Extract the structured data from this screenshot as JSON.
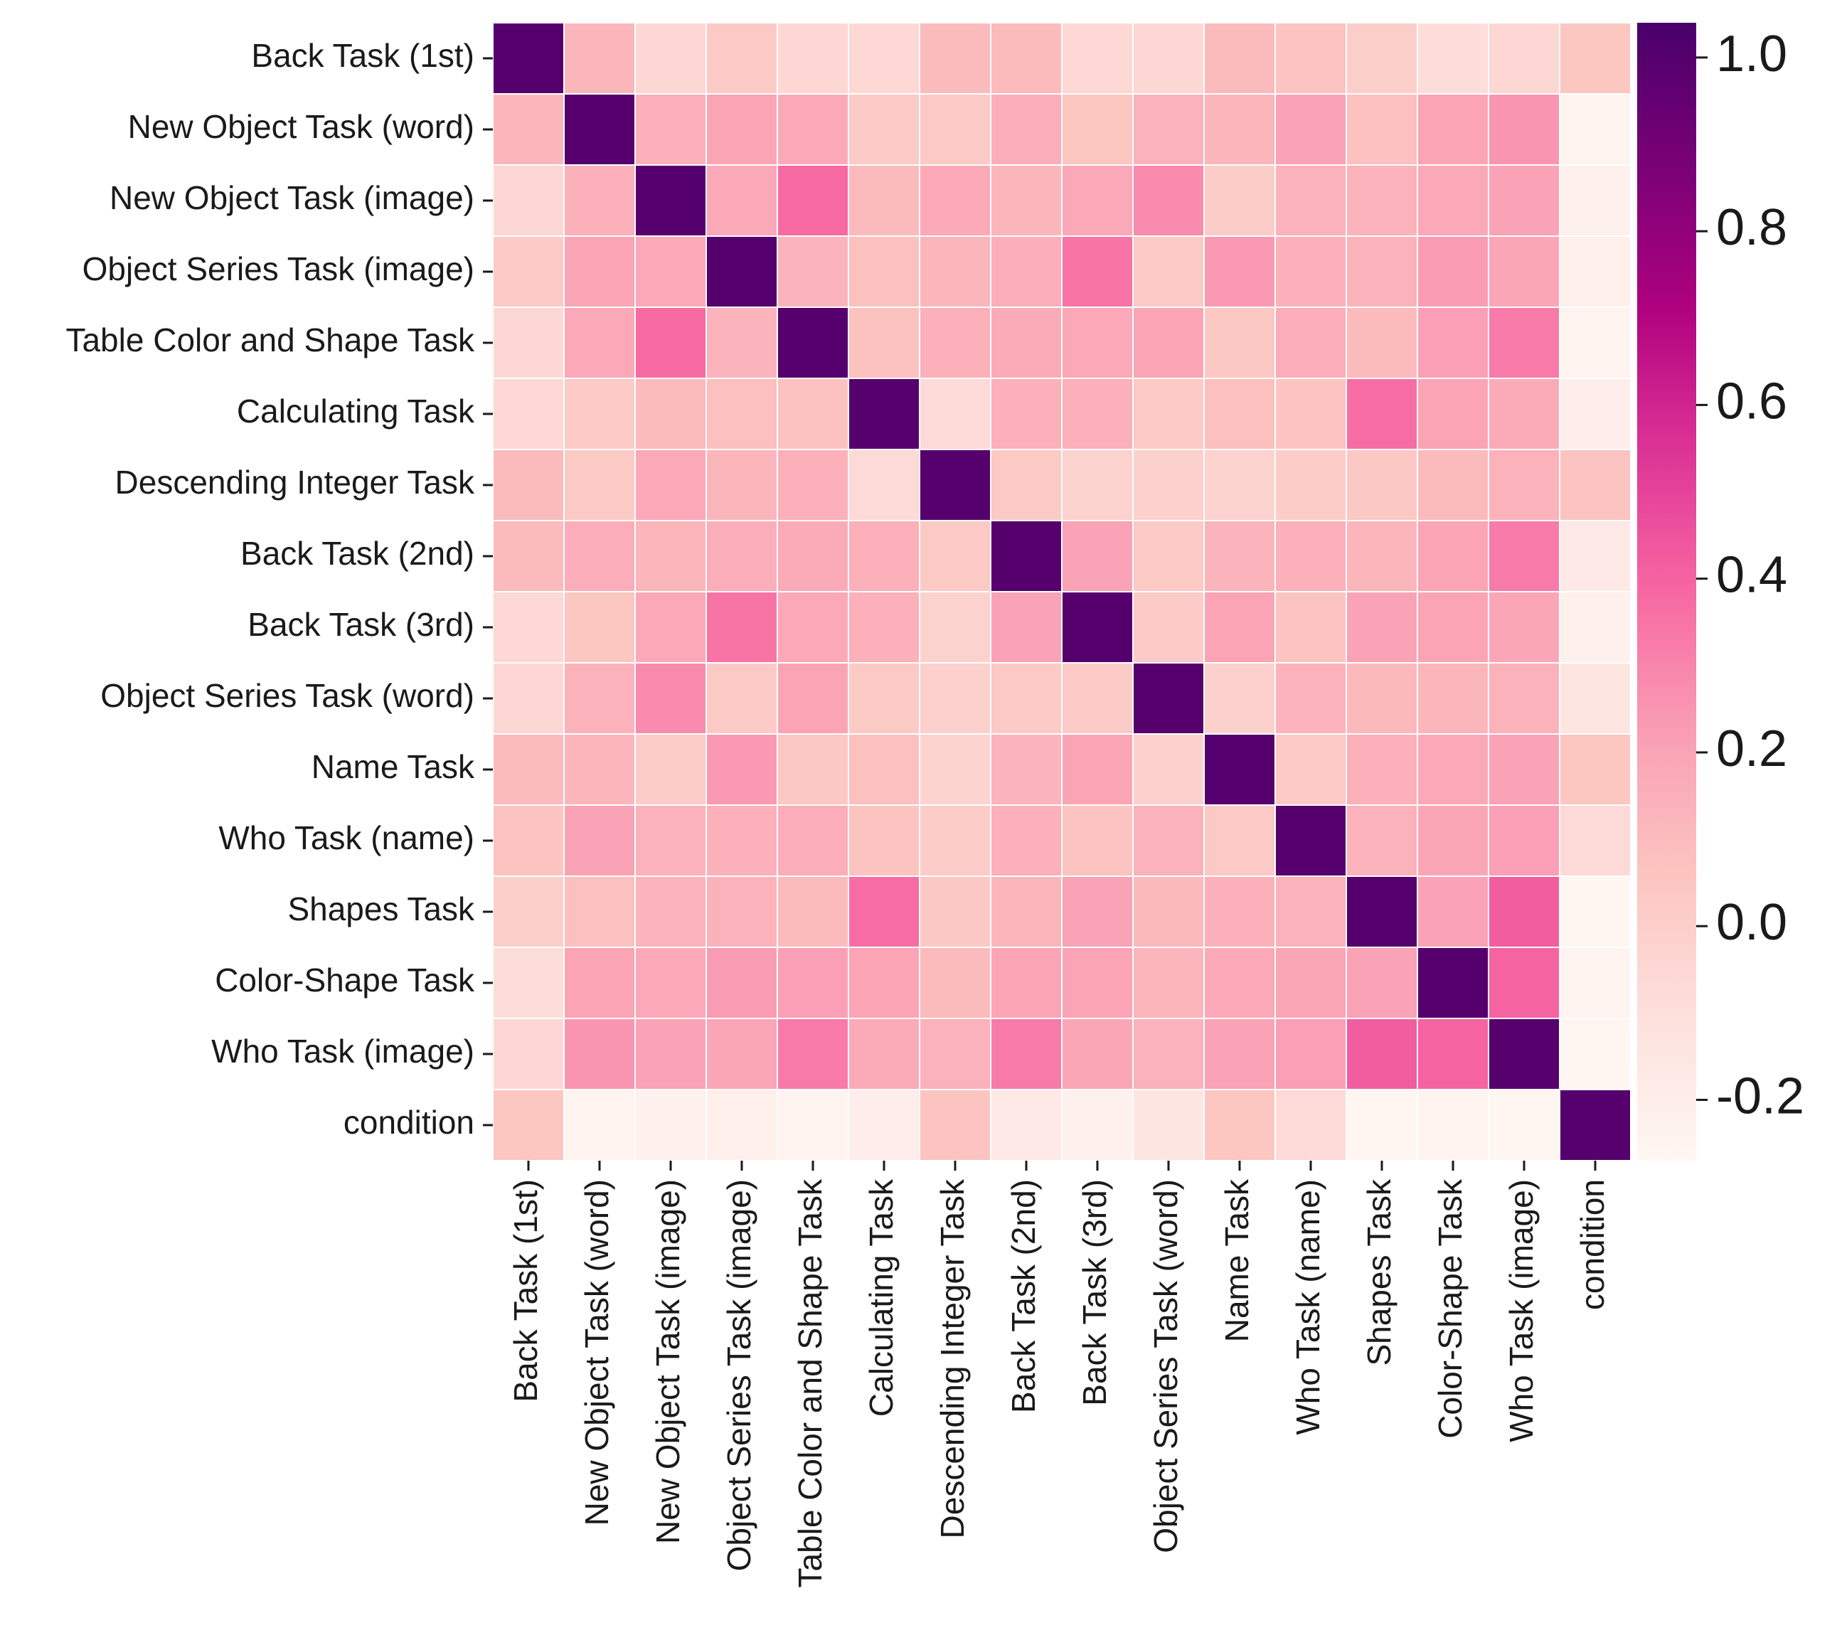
{
  "chart_data": {
    "type": "heatmap",
    "title": "",
    "xlabel": "",
    "ylabel": "",
    "labels": [
      "Back Task (1st)",
      "New Object Task (word)",
      "New Object Task (image)",
      "Object Series Task (image)",
      "Table Color and Shape Task",
      "Calculating Task",
      "Descending Integer Task",
      "Back Task (2nd)",
      "Back Task (3rd)",
      "Object Series Task (word)",
      "Name Task",
      "Who Task (name)",
      "Shapes Task",
      "Color-Shape Task",
      "Who Task (image)",
      "condition"
    ],
    "values": [
      [
        1.0,
        0.12,
        -0.05,
        0.03,
        -0.05,
        -0.06,
        0.1,
        0.1,
        -0.06,
        -0.05,
        0.1,
        0.06,
        0.0,
        -0.09,
        -0.05,
        0.05
      ],
      [
        0.12,
        1.0,
        0.15,
        0.2,
        0.18,
        0.02,
        0.03,
        0.16,
        0.05,
        0.14,
        0.12,
        0.21,
        0.08,
        0.2,
        0.25,
        -0.24
      ],
      [
        -0.05,
        0.15,
        1.0,
        0.18,
        0.38,
        0.1,
        0.18,
        0.12,
        0.18,
        0.28,
        0.01,
        0.14,
        0.14,
        0.18,
        0.21,
        -0.22
      ],
      [
        0.03,
        0.2,
        0.18,
        1.0,
        0.13,
        0.08,
        0.12,
        0.16,
        0.35,
        0.03,
        0.24,
        0.15,
        0.14,
        0.23,
        0.19,
        -0.21
      ],
      [
        -0.05,
        0.18,
        0.38,
        0.13,
        1.0,
        0.07,
        0.15,
        0.17,
        0.18,
        0.2,
        0.04,
        0.16,
        0.1,
        0.22,
        0.33,
        -0.24
      ],
      [
        -0.06,
        0.02,
        0.1,
        0.08,
        0.07,
        1.0,
        -0.07,
        0.15,
        0.15,
        0.03,
        0.08,
        0.06,
        0.37,
        0.2,
        0.17,
        -0.2
      ],
      [
        0.1,
        0.03,
        0.18,
        0.12,
        0.15,
        -0.07,
        1.0,
        0.03,
        -0.02,
        -0.01,
        -0.03,
        0.01,
        0.04,
        0.1,
        0.14,
        0.06
      ],
      [
        0.1,
        0.16,
        0.12,
        0.16,
        0.17,
        0.15,
        0.03,
        1.0,
        0.21,
        0.03,
        0.13,
        0.15,
        0.12,
        0.2,
        0.33,
        -0.17
      ],
      [
        -0.06,
        0.05,
        0.18,
        0.35,
        0.18,
        0.15,
        -0.02,
        0.21,
        1.0,
        0.02,
        0.2,
        0.06,
        0.21,
        0.2,
        0.19,
        -0.22
      ],
      [
        -0.05,
        0.14,
        0.28,
        0.03,
        0.2,
        0.03,
        -0.01,
        0.03,
        0.02,
        1.0,
        -0.01,
        0.14,
        0.11,
        0.12,
        0.14,
        -0.14
      ],
      [
        0.1,
        0.12,
        0.01,
        0.24,
        0.04,
        0.08,
        -0.03,
        0.13,
        0.2,
        -0.01,
        1.0,
        0.03,
        0.15,
        0.18,
        0.21,
        0.05
      ],
      [
        0.06,
        0.21,
        0.14,
        0.15,
        0.16,
        0.06,
        0.01,
        0.15,
        0.06,
        0.14,
        0.03,
        1.0,
        0.14,
        0.19,
        0.22,
        -0.07
      ],
      [
        0.0,
        0.08,
        0.14,
        0.14,
        0.1,
        0.37,
        0.04,
        0.12,
        0.21,
        0.11,
        0.15,
        0.14,
        1.0,
        0.21,
        0.42,
        -0.26
      ],
      [
        -0.09,
        0.2,
        0.18,
        0.23,
        0.22,
        0.2,
        0.1,
        0.2,
        0.2,
        0.12,
        0.18,
        0.19,
        0.21,
        1.0,
        0.4,
        -0.25
      ],
      [
        -0.05,
        0.25,
        0.21,
        0.19,
        0.33,
        0.17,
        0.14,
        0.33,
        0.19,
        0.14,
        0.21,
        0.22,
        0.42,
        0.4,
        1.0,
        -0.26
      ],
      [
        0.05,
        -0.24,
        -0.22,
        -0.21,
        -0.24,
        -0.2,
        0.06,
        -0.17,
        -0.22,
        -0.14,
        0.05,
        -0.07,
        -0.26,
        -0.25,
        -0.26,
        1.0
      ]
    ],
    "colorbar": {
      "vmin": -0.27,
      "vmax": 1.04,
      "ticks": [
        "-0.2",
        "0.0",
        "0.2",
        "0.4",
        "0.6",
        "0.8",
        "1.0"
      ],
      "colormap": "RdPu"
    },
    "grid": true,
    "cell_border_color": "#ffffff"
  }
}
